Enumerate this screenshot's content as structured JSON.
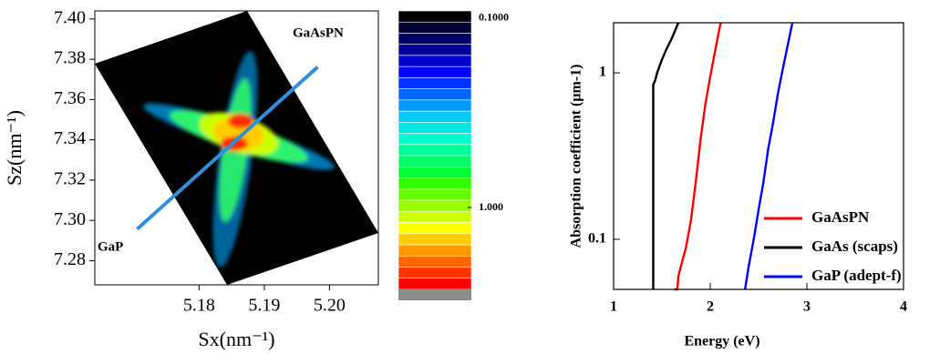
{
  "chart_data": [
    {
      "type": "heatmap",
      "xlabel": "Sx(nm⁻¹)",
      "ylabel": "Sz(nm⁻¹)",
      "xlim": [
        5.164,
        5.2075
      ],
      "ylim": [
        7.268,
        7.404
      ],
      "xticks": [
        5.18,
        5.19,
        {
          "value": 5.2,
          "label": "5.20"
        }
      ],
      "yticks": [
        7.28,
        {
          "value": 7.3,
          "label": "7.30"
        },
        7.32,
        7.34,
        7.36,
        7.38,
        {
          "value": 7.4,
          "label": "7.40"
        }
      ],
      "annotations": [
        "GaAsPN",
        "GaP"
      ],
      "arrow": {
        "x": [
          5.1705,
          5.1982
        ],
        "y": [
          7.2957,
          7.3762
        ],
        "color": "#2f8fdc"
      },
      "colorbar": {
        "log": true,
        "lim": [
          0.092,
          2.7
        ],
        "ticks": [
          {
            "value": 0.1,
            "label": "0.1000"
          },
          {
            "value": 1,
            "label": "1.000"
          }
        ],
        "colors": [
          "#000000",
          "#000033",
          "#000066",
          "#00009a",
          "#0000cc",
          "#0000ff",
          "#0033ff",
          "#0066ff",
          "#0099ff",
          "#00ccff",
          "#00e5e5",
          "#00ffcc",
          "#00ff99",
          "#00ff66",
          "#00ff33",
          "#33ff00",
          "#66ff00",
          "#99ff00",
          "#ccff00",
          "#ffff00",
          "#ffcc00",
          "#ff9900",
          "#ff6600",
          "#ff3300",
          "#ff0000"
        ],
        "under_color": "#8c8c8c"
      }
    },
    {
      "type": "line",
      "xlabel": "Energy (eV)",
      "ylabel": "Absorption coefficient (μm-1)",
      "xlim": [
        1,
        4
      ],
      "ylim": [
        0.05,
        2
      ],
      "log_y": true,
      "xticks": [
        1,
        2,
        3,
        4
      ],
      "yticks": [
        0.1,
        1
      ],
      "legend": "lower right",
      "series": [
        {
          "name": "GaAsPN",
          "color": "#ff0000",
          "x": [
            1.63,
            1.66,
            1.67,
            1.7,
            1.75,
            1.8,
            1.85,
            1.9,
            1.95,
            2.0,
            2.05,
            2.1,
            2.11
          ],
          "values": [
            0.05,
            0.05,
            0.06,
            0.07,
            0.09,
            0.13,
            0.22,
            0.4,
            0.65,
            0.95,
            1.35,
            1.9,
            2.0
          ]
        },
        {
          "name": "GaAs (scaps)",
          "color": "#000000",
          "x": [
            1.41,
            1.41,
            1.43,
            1.45,
            1.5,
            1.55,
            1.6,
            1.67
          ],
          "values": [
            0.05,
            0.85,
            0.9,
            1.0,
            1.2,
            1.4,
            1.6,
            2.0
          ]
        },
        {
          "name": "GaP (adept-f)",
          "color": "#0000ff",
          "x": [
            2.36,
            2.4,
            2.45,
            2.5,
            2.55,
            2.6,
            2.65,
            2.7,
            2.75,
            2.8,
            2.85
          ],
          "values": [
            0.05,
            0.07,
            0.1,
            0.15,
            0.22,
            0.35,
            0.5,
            0.75,
            1.05,
            1.45,
            2.0
          ]
        }
      ]
    }
  ]
}
